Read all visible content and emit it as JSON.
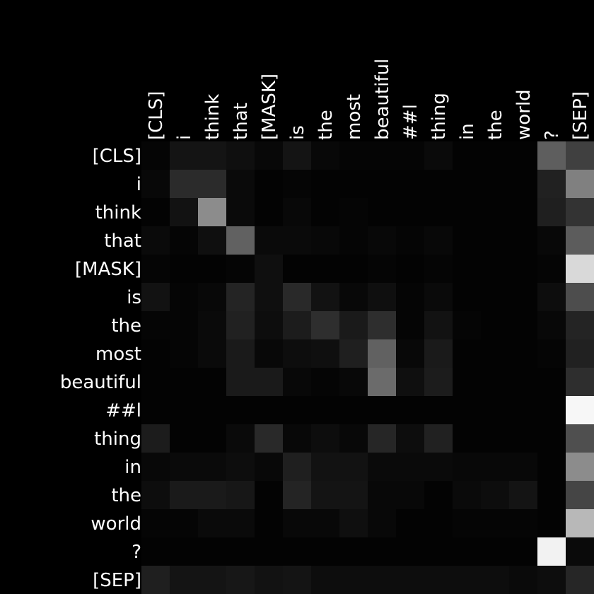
{
  "chart_data": {
    "type": "heatmap",
    "title": "",
    "xlabel": "",
    "ylabel": "",
    "x_labels": [
      "[CLS]",
      "i",
      "think",
      "that",
      "[MASK]",
      "is",
      "the",
      "most",
      "beautiful",
      "##l",
      "thing",
      "in",
      "the",
      "world",
      "?",
      "[SEP]"
    ],
    "y_labels": [
      "[CLS]",
      "i",
      "think",
      "that",
      "[MASK]",
      "is",
      "the",
      "most",
      "beautiful",
      "##l",
      "thing",
      "in",
      "the",
      "world",
      "?",
      "[SEP]"
    ],
    "colormap": "grayscale (black = low, white = high)",
    "value_range": [
      0,
      1
    ],
    "values": [
      [
        0.02,
        0.08,
        0.08,
        0.06,
        0.03,
        0.08,
        0.03,
        0.02,
        0.02,
        0.02,
        0.04,
        0.01,
        0.01,
        0.01,
        0.37,
        0.25
      ],
      [
        0.03,
        0.17,
        0.17,
        0.04,
        0.01,
        0.02,
        0.01,
        0.01,
        0.01,
        0.01,
        0.01,
        0.01,
        0.01,
        0.01,
        0.13,
        0.5
      ],
      [
        0.01,
        0.07,
        0.55,
        0.04,
        0.01,
        0.03,
        0.01,
        0.02,
        0.01,
        0.01,
        0.01,
        0.01,
        0.01,
        0.01,
        0.12,
        0.2
      ],
      [
        0.04,
        0.02,
        0.06,
        0.38,
        0.04,
        0.04,
        0.03,
        0.02,
        0.03,
        0.02,
        0.03,
        0.01,
        0.01,
        0.01,
        0.03,
        0.36
      ],
      [
        0.02,
        0.01,
        0.01,
        0.02,
        0.06,
        0.01,
        0.01,
        0.01,
        0.02,
        0.01,
        0.02,
        0.01,
        0.01,
        0.01,
        0.02,
        0.85
      ],
      [
        0.07,
        0.02,
        0.03,
        0.14,
        0.06,
        0.16,
        0.07,
        0.03,
        0.06,
        0.02,
        0.04,
        0.01,
        0.01,
        0.01,
        0.05,
        0.3
      ],
      [
        0.02,
        0.02,
        0.04,
        0.13,
        0.05,
        0.11,
        0.18,
        0.1,
        0.18,
        0.02,
        0.07,
        0.02,
        0.01,
        0.01,
        0.03,
        0.14
      ],
      [
        0.01,
        0.02,
        0.04,
        0.1,
        0.03,
        0.05,
        0.06,
        0.12,
        0.38,
        0.03,
        0.1,
        0.01,
        0.01,
        0.01,
        0.02,
        0.13
      ],
      [
        0.01,
        0.01,
        0.01,
        0.1,
        0.1,
        0.03,
        0.02,
        0.03,
        0.42,
        0.06,
        0.11,
        0.01,
        0.01,
        0.01,
        0.01,
        0.18
      ],
      [
        0.01,
        0.01,
        0.01,
        0.01,
        0.01,
        0.01,
        0.01,
        0.01,
        0.01,
        0.01,
        0.01,
        0.01,
        0.01,
        0.01,
        0.01,
        0.97
      ],
      [
        0.11,
        0.01,
        0.01,
        0.04,
        0.16,
        0.03,
        0.05,
        0.03,
        0.15,
        0.05,
        0.13,
        0.01,
        0.01,
        0.01,
        0.01,
        0.31
      ],
      [
        0.03,
        0.04,
        0.04,
        0.05,
        0.03,
        0.12,
        0.07,
        0.07,
        0.04,
        0.04,
        0.04,
        0.03,
        0.03,
        0.03,
        0.01,
        0.55
      ],
      [
        0.05,
        0.1,
        0.1,
        0.09,
        0.01,
        0.14,
        0.08,
        0.08,
        0.03,
        0.03,
        0.01,
        0.04,
        0.05,
        0.08,
        0.01,
        0.27
      ],
      [
        0.02,
        0.02,
        0.04,
        0.04,
        0.01,
        0.03,
        0.03,
        0.06,
        0.03,
        0.01,
        0.01,
        0.02,
        0.02,
        0.02,
        0.01,
        0.72
      ],
      [
        0.01,
        0.01,
        0.01,
        0.01,
        0.01,
        0.01,
        0.01,
        0.01,
        0.01,
        0.01,
        0.01,
        0.01,
        0.01,
        0.01,
        0.95,
        0.04
      ],
      [
        0.12,
        0.08,
        0.08,
        0.09,
        0.07,
        0.08,
        0.05,
        0.05,
        0.05,
        0.05,
        0.05,
        0.05,
        0.05,
        0.04,
        0.05,
        0.15
      ]
    ]
  }
}
